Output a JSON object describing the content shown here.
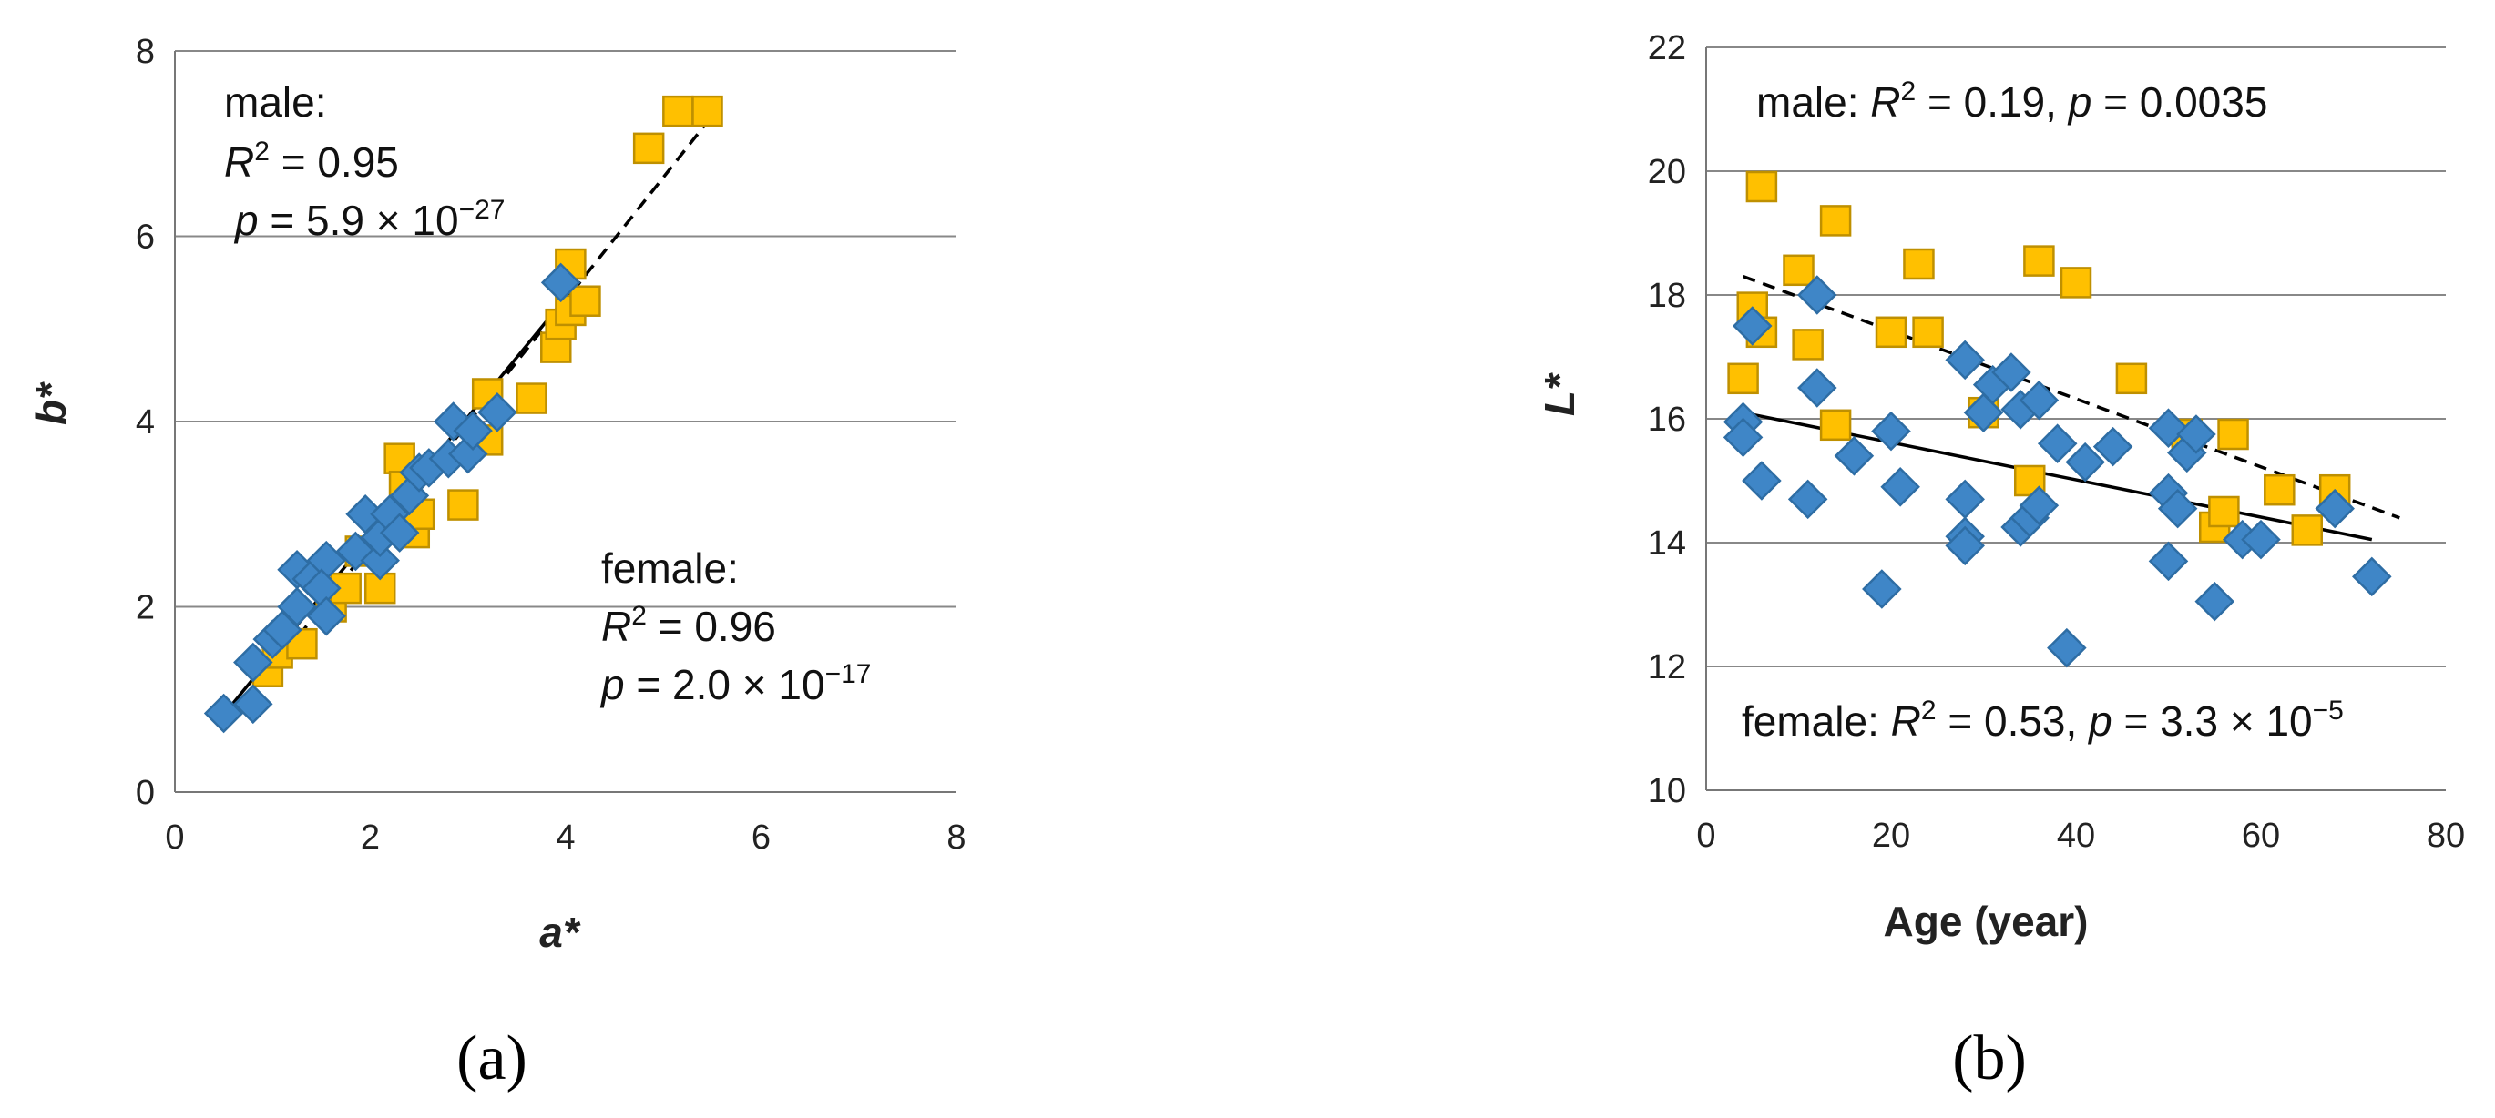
{
  "colors": {
    "male_fill": "#FFC000",
    "male_stroke": "#BF9000",
    "female_fill": "#3F86C7",
    "female_stroke": "#2E6DA4",
    "grid": "#888888",
    "axis": "#777777",
    "fit": "#000000"
  },
  "panels": {
    "a": {
      "label": "(a)"
    },
    "b": {
      "label": "(b)"
    }
  },
  "chart_data": [
    {
      "id": "a",
      "type": "scatter",
      "xlabel": "a*",
      "ylabel": "b*",
      "xlim": [
        0,
        8
      ],
      "ylim": [
        0,
        8
      ],
      "xticks": [
        0,
        2,
        4,
        6,
        8
      ],
      "yticks": [
        0,
        2,
        4,
        6,
        8
      ],
      "xtick_labels": [
        "0",
        "2",
        "4",
        "6",
        "8"
      ],
      "ytick_labels": [
        "0",
        "2",
        "4",
        "6",
        "8"
      ],
      "grid": "horizontal",
      "annotations": {
        "male": {
          "label": "male:",
          "r2_sym": "R",
          "r2_sup": "2",
          "r2_val": " = 0.95",
          "p_sym": "p",
          "p_val": " = 5.9 × 10",
          "p_exp": "−27"
        },
        "female": {
          "label": "female:",
          "r2_sym": "R",
          "r2_sup": "2",
          "r2_val": " = 0.96",
          "p_sym": "p",
          "p_val": " = 2.0 × 10",
          "p_exp": "−17"
        }
      },
      "series": [
        {
          "name": "male",
          "marker": "square",
          "points": [
            [
              0.95,
              1.3
            ],
            [
              1.05,
              1.5
            ],
            [
              1.3,
              1.6
            ],
            [
              1.6,
              2.0
            ],
            [
              1.75,
              2.2
            ],
            [
              2.1,
              2.2
            ],
            [
              1.9,
              2.6
            ],
            [
              2.3,
              3.6
            ],
            [
              2.45,
              2.8
            ],
            [
              2.5,
              3.0
            ],
            [
              2.35,
              3.3
            ],
            [
              2.95,
              3.1
            ],
            [
              3.2,
              3.8
            ],
            [
              3.2,
              4.3
            ],
            [
              3.65,
              4.25
            ],
            [
              3.9,
              4.8
            ],
            [
              3.95,
              5.05
            ],
            [
              4.05,
              5.2
            ],
            [
              4.2,
              5.3
            ],
            [
              4.05,
              5.7
            ],
            [
              4.85,
              6.95
            ],
            [
              5.15,
              7.35
            ],
            [
              5.45,
              7.35
            ]
          ]
        },
        {
          "name": "female",
          "marker": "diamond",
          "points": [
            [
              0.5,
              0.85
            ],
            [
              0.8,
              0.95
            ],
            [
              0.8,
              1.4
            ],
            [
              1.0,
              1.65
            ],
            [
              1.1,
              1.75
            ],
            [
              1.25,
              2.0
            ],
            [
              1.25,
              2.4
            ],
            [
              1.4,
              2.3
            ],
            [
              1.55,
              2.5
            ],
            [
              1.5,
              2.2
            ],
            [
              1.55,
              1.9
            ],
            [
              1.85,
              2.6
            ],
            [
              1.95,
              3.0
            ],
            [
              2.1,
              2.5
            ],
            [
              2.1,
              2.75
            ],
            [
              2.2,
              3.0
            ],
            [
              2.3,
              2.8
            ],
            [
              2.4,
              3.2
            ],
            [
              2.5,
              3.45
            ],
            [
              2.6,
              3.5
            ],
            [
              2.8,
              3.6
            ],
            [
              2.85,
              4.0
            ],
            [
              3.0,
              3.65
            ],
            [
              3.05,
              3.9
            ],
            [
              3.3,
              4.1
            ],
            [
              3.95,
              5.5
            ]
          ]
        }
      ],
      "fits": [
        {
          "name": "male",
          "style": "dashed",
          "x": [
            0.6,
            5.5
          ],
          "y": [
            0.8,
            7.3
          ]
        },
        {
          "name": "female",
          "style": "solid",
          "x": [
            0.55,
            4.05
          ],
          "y": [
            0.9,
            5.4
          ]
        }
      ]
    },
    {
      "id": "b",
      "type": "scatter",
      "xlabel": "Age (year)",
      "ylabel": "L*",
      "xlim": [
        0,
        80
      ],
      "ylim": [
        10,
        22
      ],
      "xticks": [
        0,
        20,
        40,
        60,
        80
      ],
      "yticks": [
        10,
        12,
        14,
        16,
        18,
        20,
        22
      ],
      "xtick_labels": [
        "0",
        "20",
        "40",
        "60",
        "80"
      ],
      "ytick_labels": [
        "10",
        "12",
        "14",
        "16",
        "18",
        "20",
        "22"
      ],
      "grid": "horizontal",
      "annotations": {
        "male": {
          "label": "male: ",
          "r2_sym": "R",
          "r2_sup": "2",
          "r2_val": " = 0.19, ",
          "p_sym": "p",
          "p_val": " = 0.0035"
        },
        "female": {
          "label": "female: ",
          "r2_sym": "R",
          "r2_sup": "2",
          "r2_val": " = 0.53, ",
          "p_sym": "p",
          "p_val": " = 3.3 × 10",
          "p_exp": "−5"
        }
      },
      "series": [
        {
          "name": "male",
          "marker": "square",
          "points": [
            [
              4,
              16.65
            ],
            [
              5,
              17.8
            ],
            [
              6,
              19.75
            ],
            [
              6,
              17.4
            ],
            [
              10,
              18.4
            ],
            [
              11,
              17.2
            ],
            [
              14,
              19.2
            ],
            [
              14,
              15.9
            ],
            [
              20,
              17.4
            ],
            [
              23,
              18.5
            ],
            [
              24,
              17.4
            ],
            [
              30,
              16.1
            ],
            [
              35,
              15.0
            ],
            [
              36,
              18.55
            ],
            [
              40,
              18.2
            ],
            [
              46,
              16.65
            ],
            [
              52,
              15.75
            ],
            [
              55,
              14.25
            ],
            [
              56,
              14.5
            ],
            [
              57,
              15.75
            ],
            [
              62,
              14.85
            ],
            [
              65,
              14.2
            ],
            [
              68,
              14.85
            ]
          ]
        },
        {
          "name": "female",
          "marker": "diamond",
          "points": [
            [
              4,
              15.95
            ],
            [
              4,
              15.7
            ],
            [
              5,
              17.5
            ],
            [
              6,
              15.0
            ],
            [
              11,
              14.7
            ],
            [
              12,
              18.0
            ],
            [
              12,
              16.5
            ],
            [
              16,
              15.4
            ],
            [
              19,
              13.25
            ],
            [
              20,
              15.8
            ],
            [
              21,
              14.9
            ],
            [
              28,
              16.95
            ],
            [
              28,
              14.7
            ],
            [
              28,
              14.1
            ],
            [
              28,
              13.95
            ],
            [
              30,
              16.1
            ],
            [
              31,
              16.55
            ],
            [
              33,
              16.75
            ],
            [
              34,
              16.15
            ],
            [
              34,
              14.25
            ],
            [
              35,
              14.4
            ],
            [
              36,
              16.3
            ],
            [
              36,
              14.6
            ],
            [
              38,
              15.6
            ],
            [
              39,
              12.3
            ],
            [
              41,
              15.3
            ],
            [
              44,
              15.55
            ],
            [
              50,
              15.85
            ],
            [
              50,
              14.8
            ],
            [
              50,
              13.7
            ],
            [
              51,
              14.55
            ],
            [
              52,
              15.45
            ],
            [
              53,
              15.75
            ],
            [
              55,
              13.05
            ],
            [
              58,
              14.05
            ],
            [
              60,
              14.05
            ],
            [
              68,
              14.55
            ],
            [
              72,
              13.45
            ]
          ]
        }
      ],
      "fits": [
        {
          "name": "male",
          "style": "dashed",
          "x": [
            4,
            75
          ],
          "y": [
            18.3,
            14.4
          ]
        },
        {
          "name": "female",
          "style": "solid",
          "x": [
            4,
            72
          ],
          "y": [
            16.1,
            14.05
          ]
        }
      ]
    }
  ]
}
